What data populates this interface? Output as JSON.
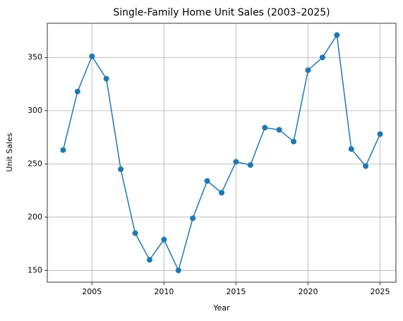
{
  "chart_data": {
    "type": "line",
    "title": "Single-Family Home Unit Sales (2003–2025)",
    "x_label": "Year",
    "y_label": "Unit Sales",
    "x": [
      2003,
      2004,
      2005,
      2006,
      2007,
      2008,
      2009,
      2010,
      2011,
      2012,
      2013,
      2014,
      2015,
      2016,
      2017,
      2018,
      2019,
      2020,
      2021,
      2022,
      2023,
      2024,
      2025
    ],
    "series": [
      {
        "name": "Unit Sales",
        "color": "#1f77b4",
        "values": [
          263,
          318,
          351,
          330,
          245,
          185,
          160,
          179,
          150,
          199,
          234,
          223,
          252,
          249,
          284,
          282,
          271,
          338,
          350,
          371,
          264,
          248,
          278
        ]
      }
    ],
    "xlim": [
      2001.9,
      2026.1
    ],
    "ylim": [
      138.95,
      382.05
    ],
    "xticks": [
      2005,
      2010,
      2015,
      2020,
      2025
    ],
    "yticks": [
      150,
      200,
      250,
      300,
      350
    ],
    "grid": true,
    "markers": true
  }
}
